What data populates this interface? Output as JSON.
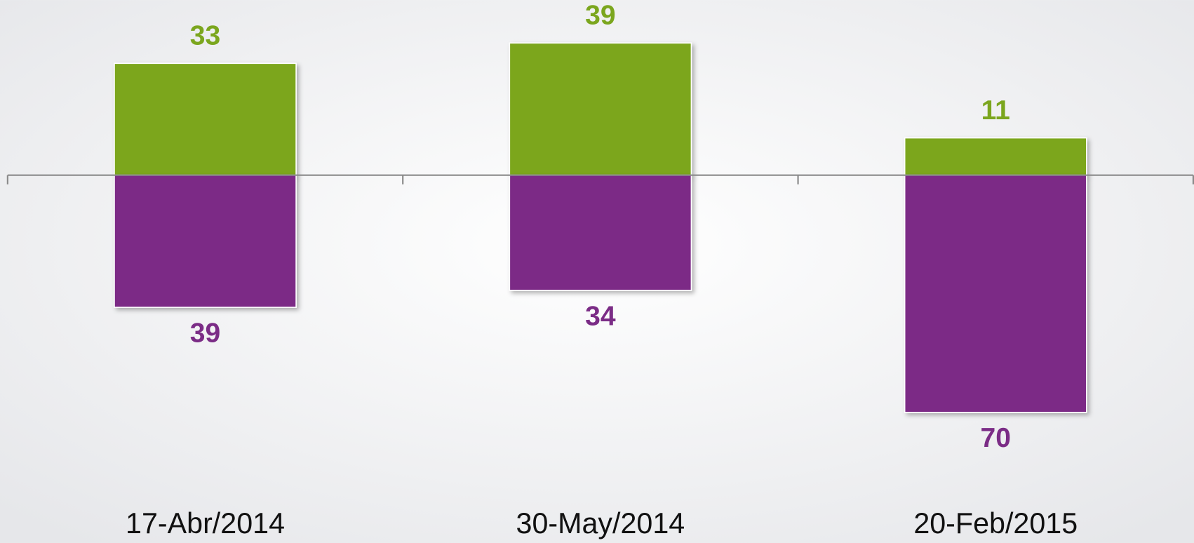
{
  "chart_data": {
    "type": "bar",
    "categories": [
      "17-Abr/2014",
      "30-May/2014",
      "20-Feb/2015"
    ],
    "series": [
      {
        "color": "#7ba61e",
        "values": [
          33,
          39,
          11
        ]
      },
      {
        "color": "#7b2c86",
        "values": [
          -39,
          -34,
          -70
        ],
        "value_labels": [
          "39",
          "34",
          "70"
        ]
      }
    ],
    "ylim": [
      -80,
      50
    ]
  }
}
